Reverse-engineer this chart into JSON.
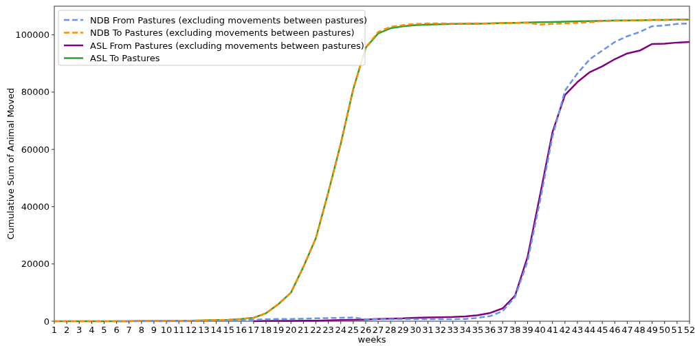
{
  "chart_data": {
    "type": "line",
    "xlabel": "weeks",
    "ylabel": "Cumulative Sum of Animal Moved",
    "x": [
      1,
      2,
      3,
      4,
      5,
      6,
      7,
      8,
      9,
      10,
      11,
      12,
      13,
      14,
      15,
      16,
      17,
      18,
      19,
      20,
      21,
      22,
      23,
      24,
      25,
      26,
      27,
      28,
      29,
      30,
      31,
      32,
      33,
      34,
      35,
      36,
      37,
      38,
      39,
      40,
      41,
      42,
      43,
      44,
      45,
      46,
      47,
      48,
      49,
      50,
      51,
      52
    ],
    "xlim": [
      1,
      52
    ],
    "xticks": [
      1,
      2,
      3,
      4,
      5,
      6,
      7,
      8,
      9,
      10,
      11,
      12,
      13,
      14,
      15,
      16,
      17,
      18,
      19,
      20,
      21,
      22,
      23,
      24,
      25,
      26,
      27,
      28,
      29,
      30,
      31,
      32,
      33,
      34,
      35,
      36,
      37,
      38,
      39,
      40,
      41,
      42,
      43,
      44,
      45,
      46,
      47,
      48,
      49,
      50,
      51,
      52
    ],
    "ylim": [
      0,
      110000
    ],
    "yticks": [
      0,
      20000,
      40000,
      60000,
      80000,
      100000
    ],
    "grid": false,
    "legend": "top left",
    "series": [
      {
        "name": "NDB From Pastures (excluding movements between pastures)",
        "color": "#6495ed",
        "line_style": "dashed",
        "values": [
          null,
          null,
          null,
          null,
          null,
          0,
          0,
          0,
          0,
          0,
          0,
          0,
          100,
          100,
          200,
          300,
          500,
          700,
          800,
          800,
          900,
          1000,
          1100,
          1200,
          1300,
          700,
          700,
          700,
          700,
          700,
          700,
          700,
          700,
          800,
          1200,
          1800,
          3500,
          8500,
          21000,
          42000,
          64500,
          80500,
          86500,
          91500,
          94500,
          97500,
          99500,
          101000,
          103000,
          103300,
          103800,
          104000
        ]
      },
      {
        "name": "NDB To Pastures (excluding movements between pastures)",
        "color": "#ff8c00",
        "line_style": "dashed",
        "values": [
          0,
          0,
          0,
          0,
          0,
          0,
          0,
          100,
          100,
          100,
          200,
          200,
          300,
          400,
          500,
          800,
          1200,
          2800,
          6000,
          10000,
          19000,
          29000,
          45000,
          62000,
          81000,
          95500,
          101000,
          102800,
          103400,
          103800,
          104000,
          104000,
          103900,
          104000,
          104000,
          104000,
          104100,
          104200,
          104200,
          103600,
          103800,
          104000,
          104200,
          104400,
          104800,
          104900,
          105000,
          105100,
          105200,
          105200,
          105300,
          105300
        ]
      },
      {
        "name": "ASL From Pastures (excluding movements between pastures)",
        "color": "#800080",
        "line_style": "solid",
        "values": [
          null,
          null,
          null,
          null,
          null,
          null,
          null,
          null,
          null,
          null,
          null,
          null,
          null,
          null,
          null,
          null,
          0,
          100,
          100,
          100,
          200,
          200,
          300,
          400,
          500,
          600,
          800,
          900,
          1000,
          1200,
          1300,
          1400,
          1500,
          1700,
          2100,
          2900,
          4500,
          9000,
          22500,
          44000,
          66000,
          79000,
          83500,
          87000,
          89000,
          91500,
          93500,
          94500,
          96800,
          96900,
          97300,
          97500
        ]
      },
      {
        "name": "ASL To Pastures",
        "color": "#2ca02c",
        "line_style": "solid",
        "values": [
          0,
          0,
          0,
          0,
          0,
          0,
          0,
          100,
          100,
          100,
          200,
          200,
          300,
          400,
          500,
          800,
          1200,
          2800,
          6000,
          10000,
          19000,
          29000,
          45000,
          62000,
          81000,
          95500,
          100500,
          102300,
          103000,
          103400,
          103600,
          103700,
          103800,
          103900,
          103900,
          104000,
          104100,
          104200,
          104300,
          104400,
          104500,
          104600,
          104700,
          104800,
          104900,
          105000,
          105000,
          105100,
          105200,
          105200,
          105300,
          105300
        ]
      }
    ]
  }
}
